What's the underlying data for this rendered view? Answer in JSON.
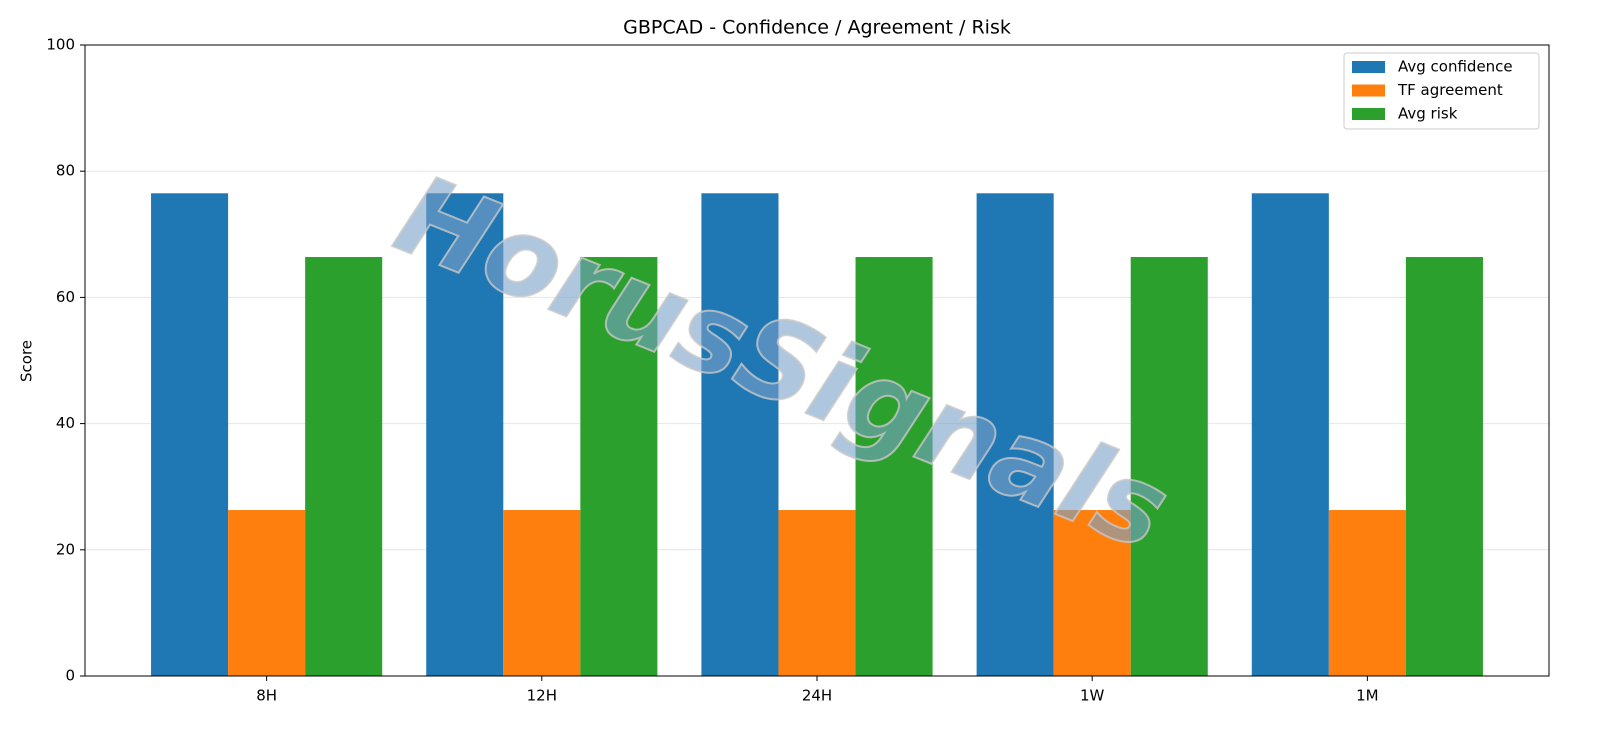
{
  "chart_data": {
    "type": "bar",
    "title": "GBPCAD - Confidence / Agreement / Risk",
    "ylabel": "Score",
    "watermark": "HorusSignals",
    "categories": [
      "8H",
      "12H",
      "24H",
      "1W",
      "1M"
    ],
    "series": [
      {
        "name": "Avg confidence",
        "color": "#1f77b4",
        "values": [
          76.5,
          76.5,
          76.5,
          76.5,
          76.5
        ]
      },
      {
        "name": "TF agreement",
        "color": "#ff7f0e",
        "values": [
          26.3,
          26.3,
          26.3,
          26.3,
          26.3
        ]
      },
      {
        "name": "Avg risk",
        "color": "#2ca02c",
        "values": [
          66.4,
          66.4,
          66.4,
          66.4,
          66.4
        ]
      }
    ],
    "ylim": [
      0,
      100
    ],
    "yticks": [
      0,
      20,
      40,
      60,
      80,
      100
    ],
    "grid": true,
    "legend": "upper right"
  }
}
